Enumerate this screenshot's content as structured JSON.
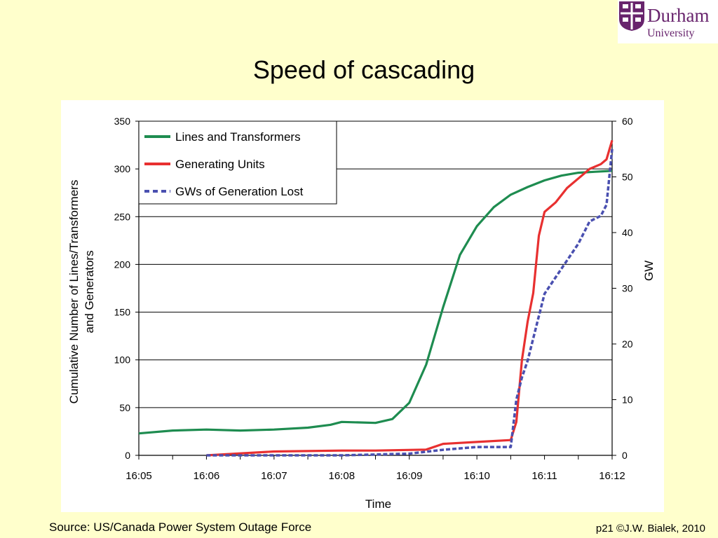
{
  "slide": {
    "title": "Speed of cascading",
    "source": "Source: US/Canada Power System Outage Force",
    "page_note": "p21 ©J.W. Bialek, 2010"
  },
  "logo": {
    "name": "Durham",
    "sub": "University",
    "color": "#68246d"
  },
  "chart_data": {
    "type": "line",
    "title": "",
    "xlabel": "Time",
    "ylabel_left": "Cumulative Number of Lines/Transformers and Generators",
    "ylabel_right": "GW",
    "x_ticks": [
      "16:05",
      "16:06",
      "16:07",
      "16:08",
      "16:09",
      "16:10",
      "16:11",
      "16:12"
    ],
    "ylim_left": [
      0,
      350
    ],
    "yticks_left": [
      "0",
      "50",
      "100",
      "150",
      "200",
      "250",
      "300",
      "350"
    ],
    "ylim_right": [
      0,
      60
    ],
    "yticks_right": [
      "0",
      "10",
      "20",
      "30",
      "40",
      "50",
      "60"
    ],
    "grid": "horizontal",
    "legend_position": "top-left",
    "series": [
      {
        "name": "Lines and Transformers",
        "axis": "left",
        "color": "#1e8c50",
        "style": "solid",
        "x": [
          "16:05",
          "16:05:30",
          "16:06",
          "16:06:30",
          "16:07",
          "16:07:30",
          "16:07:50",
          "16:08",
          "16:08:30",
          "16:08:45",
          "16:09",
          "16:09:15",
          "16:09:30",
          "16:09:45",
          "16:10",
          "16:10:15",
          "16:10:30",
          "16:10:45",
          "16:11",
          "16:11:15",
          "16:11:30",
          "16:11:45",
          "16:12"
        ],
        "values": [
          23,
          26,
          27,
          26,
          27,
          29,
          32,
          35,
          34,
          38,
          55,
          95,
          155,
          210,
          240,
          260,
          273,
          281,
          288,
          293,
          296,
          297,
          298
        ]
      },
      {
        "name": "Generating Units",
        "axis": "left",
        "color": "#e83030",
        "style": "solid",
        "x": [
          "16:06",
          "16:07",
          "16:08",
          "16:08:30",
          "16:09:15",
          "16:09:30",
          "16:10",
          "16:10:30",
          "16:10:35",
          "16:10:40",
          "16:10:45",
          "16:10:50",
          "16:10:55",
          "16:11",
          "16:11:10",
          "16:11:20",
          "16:11:30",
          "16:11:40",
          "16:11:50",
          "16:11:55",
          "16:12"
        ],
        "values": [
          0,
          4,
          5,
          5,
          6,
          12,
          14,
          16,
          35,
          100,
          140,
          170,
          230,
          255,
          265,
          280,
          290,
          300,
          305,
          310,
          330
        ]
      },
      {
        "name": "GWs of Generation Lost",
        "axis": "right",
        "color": "#4a50b0",
        "style": "dashed",
        "x": [
          "16:06",
          "16:07",
          "16:08",
          "16:09",
          "16:09:30",
          "16:10",
          "16:10:30",
          "16:10:35",
          "16:10:40",
          "16:10:45",
          "16:10:50",
          "16:10:55",
          "16:11",
          "16:11:10",
          "16:11:20",
          "16:11:30",
          "16:11:40",
          "16:11:50",
          "16:11:55",
          "16:12"
        ],
        "values": [
          0,
          0,
          0,
          0.3,
          1,
          1.5,
          1.5,
          10,
          14,
          17,
          21,
          25,
          29,
          32,
          35,
          38,
          42,
          43,
          45,
          55
        ]
      }
    ]
  }
}
